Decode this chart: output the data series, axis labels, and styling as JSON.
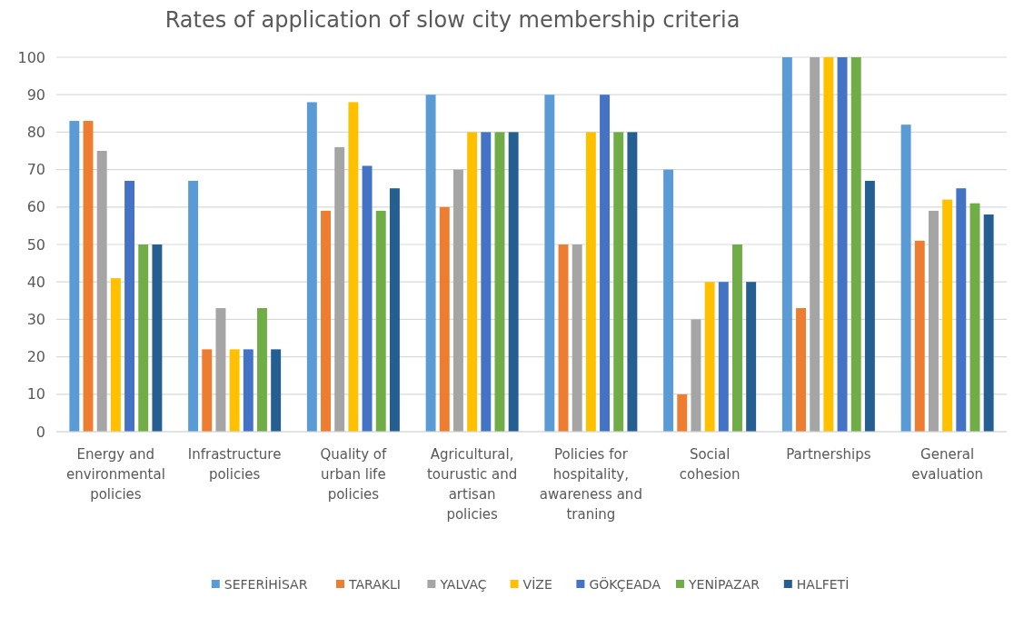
{
  "chart_data": {
    "type": "bar",
    "title": "Rates of application of slow city membership criteria",
    "categories": [
      "Energy and environmental policies",
      "Infrastructure policies",
      "Quality of urban life policies",
      "Agricultural, tourustic and artisan policies",
      "Policies for hospitality, awareness and traning",
      "Social cohesion",
      "Partnerships",
      "General evaluation"
    ],
    "series": [
      {
        "name": "SEFERİHİSAR",
        "color": "#5b9bd5",
        "values": [
          83,
          67,
          88,
          90,
          90,
          70,
          100,
          82
        ]
      },
      {
        "name": "TARAKLI",
        "color": "#ed7d31",
        "values": [
          83,
          22,
          59,
          60,
          50,
          10,
          33,
          51
        ]
      },
      {
        "name": "YALVAÇ",
        "color": "#a5a5a5",
        "values": [
          75,
          33,
          76,
          70,
          50,
          30,
          100,
          59
        ]
      },
      {
        "name": "VİZE",
        "color": "#ffc000",
        "values": [
          41,
          22,
          88,
          80,
          80,
          40,
          100,
          62
        ]
      },
      {
        "name": "GÖKÇEADA",
        "color": "#4472c4",
        "values": [
          67,
          22,
          71,
          80,
          90,
          40,
          100,
          65
        ]
      },
      {
        "name": "YENİPAZAR",
        "color": "#70ad47",
        "values": [
          50,
          33,
          59,
          80,
          80,
          50,
          100,
          61
        ]
      },
      {
        "name": "HALFETİ",
        "color": "#255e91",
        "values": [
          50,
          22,
          65,
          80,
          80,
          40,
          67,
          58
        ]
      }
    ],
    "ylim": [
      0,
      100
    ],
    "yticks": [
      0,
      10,
      20,
      30,
      40,
      50,
      60,
      70,
      80,
      90,
      100
    ],
    "grid": "y",
    "legend": "bottom"
  }
}
